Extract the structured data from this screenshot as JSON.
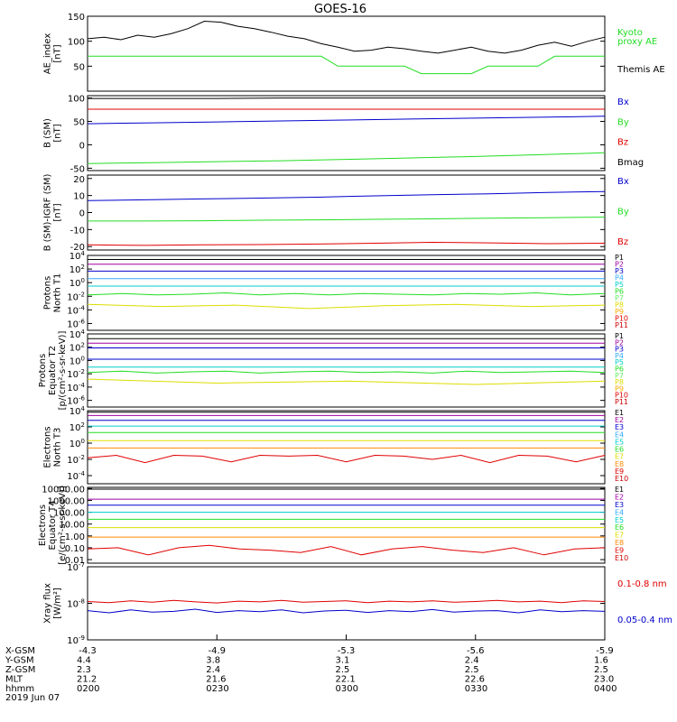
{
  "title": "GOES-16",
  "colors": {
    "black": "#000000",
    "red": "#e00000",
    "green": "#22dd22",
    "blue": "#0000cc",
    "cyan": "#00cccc",
    "yellow": "#dddd00",
    "orange": "#ff8800",
    "purple": "#a000a0",
    "lightblue": "#33aaff",
    "lightgreen": "#66ee66",
    "gold": "#ffaa00",
    "darkred": "#cc0000"
  },
  "time_axis": {
    "rows": [
      {
        "label": "X-GSM",
        "values": [
          "-4.3",
          "-4.9",
          "-5.3",
          "-5.6",
          "-5.9"
        ]
      },
      {
        "label": "Y-GSM",
        "values": [
          "4.4",
          "3.8",
          "3.1",
          "2.4",
          "1.6"
        ]
      },
      {
        "label": "Z-GSM",
        "values": [
          "2.3",
          "2.4",
          "2.5",
          "2.5",
          "2.5"
        ]
      },
      {
        "label": "MLT",
        "values": [
          "21.2",
          "21.6",
          "22.1",
          "22.6",
          "23.0"
        ]
      },
      {
        "label": "hhmm",
        "values": [
          "0200",
          "0230",
          "0300",
          "0330",
          "0400"
        ]
      }
    ],
    "date": "2019 Jun 07"
  },
  "chart_data": [
    {
      "type": "line",
      "ylabel": "AE_index\n[nT]",
      "ylim": [
        0,
        150
      ],
      "yticks": [
        "150",
        "100",
        "50"
      ],
      "ytick_values": [
        150,
        100,
        50
      ],
      "series": [
        {
          "name": "Themis AE",
          "color": "#000000",
          "values": [
            105,
            108,
            103,
            112,
            108,
            115,
            125,
            140,
            138,
            130,
            125,
            118,
            110,
            105,
            95,
            88,
            80,
            82,
            88,
            85,
            80,
            76,
            82,
            88,
            80,
            76,
            82,
            92,
            98,
            90,
            100,
            108
          ]
        },
        {
          "name": "Kyoto proxy AE",
          "color": "#22dd22",
          "values": [
            70,
            70,
            70,
            70,
            70,
            70,
            70,
            70,
            70,
            70,
            70,
            70,
            70,
            70,
            70,
            50,
            50,
            50,
            50,
            50,
            35,
            35,
            35,
            35,
            50,
            50,
            50,
            50,
            70,
            70,
            70,
            70
          ]
        }
      ],
      "legend": [
        {
          "text": "Kyoto",
          "color": "#22dd22"
        },
        {
          "text": "proxy AE",
          "color": "#22dd22"
        },
        {
          "text": "Themis AE",
          "color": "#000000"
        }
      ]
    },
    {
      "type": "line",
      "ylabel": "B (SM)\n[nT]",
      "ylim": [
        -55,
        105
      ],
      "yticks": [
        "100",
        "50",
        "0",
        "-50"
      ],
      "ytick_values": [
        100,
        50,
        0,
        -50
      ],
      "series": [
        {
          "name": "Bmag",
          "color": "#000000",
          "values": [
            99,
            99,
            99,
            100,
            100,
            100,
            100,
            100,
            100
          ]
        },
        {
          "name": "Bz",
          "color": "#e00000",
          "values": [
            76,
            76,
            76,
            76,
            76,
            76,
            76,
            76,
            76
          ]
        },
        {
          "name": "Bx",
          "color": "#0000cc",
          "values": [
            45,
            47,
            49,
            51,
            53,
            55,
            57,
            59,
            61
          ]
        },
        {
          "name": "By",
          "color": "#22dd22",
          "values": [
            -40,
            -38,
            -36,
            -34,
            -31,
            -28,
            -25,
            -21,
            -17
          ]
        }
      ],
      "legend": [
        {
          "text": "Bx",
          "color": "#0000cc"
        },
        {
          "text": "By",
          "color": "#22dd22"
        },
        {
          "text": "Bz",
          "color": "#e00000"
        },
        {
          "text": "Bmag",
          "color": "#000000"
        }
      ]
    },
    {
      "type": "line",
      "ylabel": "B (SM)-IGRF (SM)\n[nT]",
      "ylim": [
        -22,
        22
      ],
      "yticks": [
        "20",
        "10",
        "0",
        "-10",
        "-20"
      ],
      "ytick_values": [
        20,
        10,
        0,
        -10,
        -20
      ],
      "series": [
        {
          "name": "Bx",
          "color": "#0000cc",
          "values": [
            7,
            7.5,
            8,
            8.5,
            9,
            9.8,
            10.5,
            11,
            11.8,
            12.3
          ]
        },
        {
          "name": "By",
          "color": "#22dd22",
          "values": [
            -5,
            -5,
            -4.8,
            -4.5,
            -4.3,
            -4,
            -3.7,
            -3.3,
            -3,
            -2.7
          ]
        },
        {
          "name": "Bz",
          "color": "#e00000",
          "values": [
            -19,
            -19.3,
            -19,
            -18.8,
            -18.5,
            -18,
            -17.5,
            -17.8,
            -18.3,
            -18
          ]
        }
      ],
      "legend": [
        {
          "text": "Bx",
          "color": "#0000cc"
        },
        {
          "text": "By",
          "color": "#22dd22"
        },
        {
          "text": "Bz",
          "color": "#e00000"
        }
      ]
    },
    {
      "type": "line",
      "log": true,
      "ylabel": "Protons\nNorth T1",
      "ylim": [
        -7,
        4
      ],
      "yticks": [
        "10^4",
        "10^2",
        "10^0",
        "10^-2",
        "10^-4",
        "10^-6"
      ],
      "ytick_values": [
        4,
        2,
        0,
        -2,
        -4,
        -6
      ],
      "series": [
        {
          "name": "P1",
          "color": "#000000",
          "values": [
            3.4,
            3.4
          ]
        },
        {
          "name": "P2",
          "color": "#a000a0",
          "values": [
            2.7,
            2.7
          ]
        },
        {
          "name": "P3",
          "color": "#0000cc",
          "values": [
            1.7,
            1.7
          ]
        },
        {
          "name": "P4",
          "color": "#33aaff",
          "values": [
            0.6,
            0.6
          ]
        },
        {
          "name": "P5",
          "color": "#00cccc",
          "values": [
            -0.5,
            -0.5
          ]
        },
        {
          "name": "P6",
          "color": "#22dd22",
          "values": [
            -1.8,
            -1.6,
            -1.8,
            -1.7,
            -1.5,
            -1.8,
            -1.6,
            -1.8,
            -1.6,
            -1.7,
            -1.8,
            -1.6,
            -1.7,
            -1.5,
            -1.8,
            -1.6
          ]
        },
        {
          "name": "P7",
          "color": "#dddd00",
          "values": [
            -3.2,
            -3.5,
            -3.3,
            -3.8,
            -3.4,
            -3.2,
            -3.5,
            -3.3
          ]
        }
      ],
      "legend": [
        "P1",
        "P2",
        "P3",
        "P4",
        "P5",
        "P6",
        "P7",
        "P8",
        "P9",
        "P10",
        "P11"
      ],
      "legend_colors": [
        "#000000",
        "#a000a0",
        "#0000cc",
        "#33aaff",
        "#00cccc",
        "#22dd22",
        "#66ee66",
        "#dddd00",
        "#ffaa00",
        "#e00000",
        "#cc0000"
      ]
    },
    {
      "type": "line",
      "log": true,
      "ylabel": "Protons\nEquator T2\n[p/(cm²-s-sr-keV)]",
      "ylim": [
        -7,
        4
      ],
      "yticks": [
        "10^4",
        "10^2",
        "10^0",
        "10^-2",
        "10^-4",
        "10^-6"
      ],
      "ytick_values": [
        4,
        2,
        0,
        -2,
        -4,
        -6
      ],
      "series": [
        {
          "name": "P1",
          "color": "#000000",
          "values": [
            3.3,
            3.3
          ]
        },
        {
          "name": "P2",
          "color": "#a000a0",
          "values": [
            2.6,
            2.6
          ]
        },
        {
          "name": "P3",
          "color": "#0000cc",
          "values": [
            1.9,
            1.9
          ]
        },
        {
          "name": "P4",
          "color": "#0000cc",
          "values": [
            0.2,
            0.2
          ]
        },
        {
          "name": "P5",
          "color": "#00cccc",
          "values": [
            -1,
            -1
          ]
        },
        {
          "name": "P6",
          "color": "#22dd22",
          "values": [
            -1.8,
            -1.6,
            -1.9,
            -1.7,
            -1.6,
            -1.9,
            -1.7,
            -1.6,
            -1.8,
            -1.7,
            -1.9,
            -1.6,
            -1.8,
            -1.7,
            -1.6,
            -1.8
          ]
        },
        {
          "name": "P7",
          "color": "#dddd00",
          "values": [
            -2.8,
            -3.4,
            -3.1,
            -3.6,
            -3.1
          ]
        }
      ],
      "legend": [
        "P1",
        "P2",
        "P3",
        "P4",
        "P5",
        "P6",
        "P7",
        "P8",
        "P9",
        "P10",
        "P11"
      ],
      "legend_colors": [
        "#000000",
        "#a000a0",
        "#0000cc",
        "#33aaff",
        "#00cccc",
        "#22dd22",
        "#66ee66",
        "#dddd00",
        "#ffaa00",
        "#e00000",
        "#cc0000"
      ]
    },
    {
      "type": "line",
      "log": true,
      "ylabel": "Electrons\nNorth T3",
      "ylim": [
        -5,
        4
      ],
      "yticks": [
        "10^4",
        "10^2",
        "10^0",
        "10^-2",
        "10^-4"
      ],
      "ytick_values": [
        4,
        2,
        0,
        -2,
        -4
      ],
      "series": [
        {
          "name": "E1",
          "color": "#000000",
          "values": [
            3.8,
            3.8
          ]
        },
        {
          "name": "E2",
          "color": "#a000a0",
          "values": [
            3.4,
            3.4
          ]
        },
        {
          "name": "E3",
          "color": "#0000cc",
          "values": [
            2.8,
            2.8
          ]
        },
        {
          "name": "E4",
          "color": "#00cccc",
          "values": [
            2.1,
            2.1
          ]
        },
        {
          "name": "E5",
          "color": "#22dd22",
          "values": [
            1.3,
            1.3
          ]
        },
        {
          "name": "E6",
          "color": "#dddd00",
          "values": [
            0.3,
            0.3
          ]
        },
        {
          "name": "E7",
          "color": "#ff8800",
          "values": [
            -0.6,
            -0.6
          ]
        },
        {
          "name": "E8",
          "color": "#e00000",
          "values": [
            -1.8,
            -1.5,
            -2.4,
            -1.5,
            -1.6,
            -2.3,
            -1.5,
            -1.6,
            -1.5,
            -2.3,
            -1.5,
            -1.6,
            -2.0,
            -1.5,
            -2.4,
            -1.5,
            -1.6,
            -2.3,
            -1.5
          ]
        }
      ],
      "legend": [
        "E1",
        "E2",
        "E3",
        "E4",
        "E5",
        "E6",
        "E7",
        "E8",
        "E9",
        "E10"
      ],
      "legend_colors": [
        "#000000",
        "#a000a0",
        "#0000cc",
        "#33aaff",
        "#00cccc",
        "#22dd22",
        "#dddd00",
        "#ff8800",
        "#e00000",
        "#cc0000"
      ]
    },
    {
      "type": "line",
      "log": true,
      "ylabel": "Electrons\nEquator T4\n[e/(cm²-s-sr-keV)]",
      "ylim": [
        -2.3,
        4.1
      ],
      "yticks": [
        "10000.00",
        "1000.00",
        "100.00",
        "10.00",
        "1.00",
        "0.10",
        "0.01"
      ],
      "ytick_values": [
        4,
        3,
        2,
        1,
        0,
        -1,
        -2
      ],
      "series": [
        {
          "name": "E1",
          "color": "#000000",
          "values": [
            3.95,
            3.95
          ]
        },
        {
          "name": "E2",
          "color": "#a000a0",
          "values": [
            3.1,
            3.1
          ]
        },
        {
          "name": "E3",
          "color": "#0000cc",
          "values": [
            2.6,
            2.6
          ]
        },
        {
          "name": "E4",
          "color": "#00cccc",
          "values": [
            2.0,
            2.0
          ]
        },
        {
          "name": "E5",
          "color": "#22dd22",
          "values": [
            1.4,
            1.4
          ]
        },
        {
          "name": "E6",
          "color": "#dddd00",
          "values": [
            0.7,
            0.7
          ]
        },
        {
          "name": "E7",
          "color": "#ff8800",
          "values": [
            -0.1,
            -0.1
          ]
        },
        {
          "name": "E8",
          "color": "#e00000",
          "values": [
            -1.1,
            -1.0,
            -1.6,
            -1.0,
            -0.8,
            -1.1,
            -1.2,
            -1.4,
            -0.9,
            -1.6,
            -1.1,
            -0.9,
            -1.2,
            -1.4,
            -1.0,
            -1.6,
            -1.1,
            -1.0
          ]
        }
      ],
      "legend": [
        "E1",
        "E2",
        "E3",
        "E4",
        "E5",
        "E6",
        "E7",
        "E8",
        "E9",
        "E10"
      ],
      "legend_colors": [
        "#000000",
        "#a000a0",
        "#0000cc",
        "#33aaff",
        "#00cccc",
        "#22dd22",
        "#dddd00",
        "#ff8800",
        "#e00000",
        "#cc0000"
      ]
    },
    {
      "type": "line",
      "log": true,
      "ylabel": "Xray flux\n[W/m²]",
      "ylim": [
        -9,
        -7
      ],
      "yticks": [
        "10^-7",
        "10^-8",
        "10^-9"
      ],
      "ytick_values": [
        -7,
        -8,
        -9
      ],
      "series": [
        {
          "name": "0.1-0.8 nm",
          "color": "#e00000",
          "values": [
            -7.95,
            -7.98,
            -7.93,
            -7.97,
            -7.92,
            -7.96,
            -7.99,
            -7.94,
            -7.96,
            -7.92,
            -7.97,
            -7.95,
            -7.93,
            -7.98,
            -7.94,
            -7.96,
            -7.93,
            -7.97,
            -7.95,
            -7.92,
            -7.96,
            -7.94,
            -7.98,
            -7.93,
            -7.95
          ]
        },
        {
          "name": "0.05-0.4 nm",
          "color": "#0000cc",
          "values": [
            -8.2,
            -8.26,
            -8.18,
            -8.24,
            -8.22,
            -8.16,
            -8.25,
            -8.2,
            -8.23,
            -8.18,
            -8.26,
            -8.21,
            -8.19,
            -8.25,
            -8.2,
            -8.23,
            -8.17,
            -8.24,
            -8.21,
            -8.2,
            -8.26,
            -8.18,
            -8.23,
            -8.2,
            -8.22
          ]
        }
      ],
      "legend": [
        {
          "text": "0.1-0.8 nm",
          "color": "#e00000"
        },
        {
          "text": "0.05-0.4 nm",
          "color": "#0000cc"
        }
      ]
    }
  ]
}
